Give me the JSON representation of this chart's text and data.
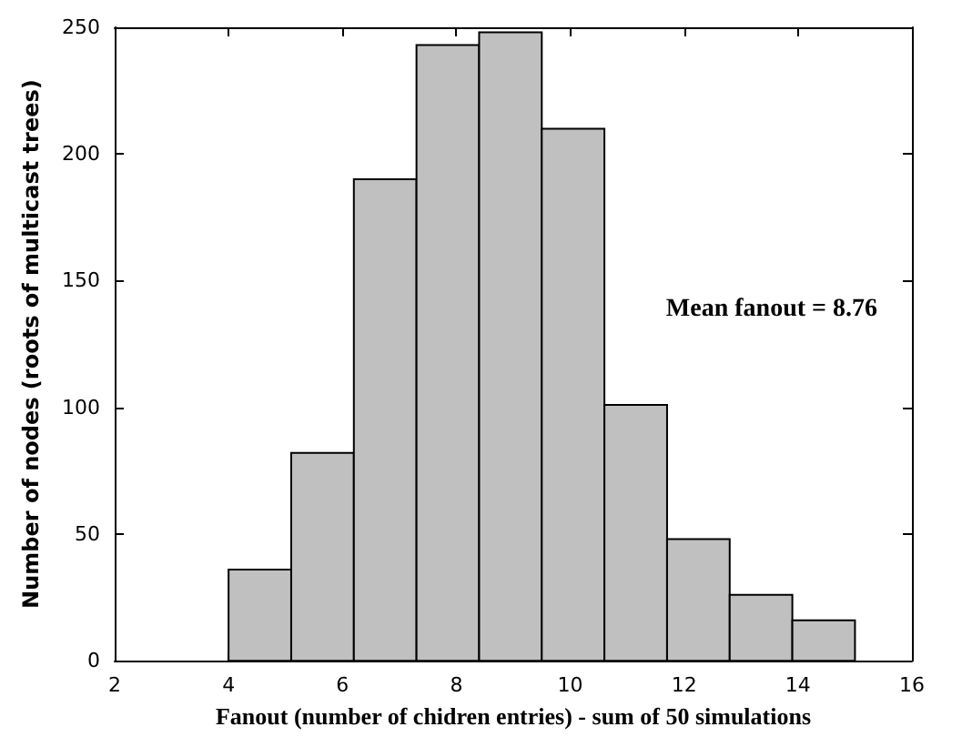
{
  "chart_data": {
    "type": "histogram",
    "bins": [
      4,
      5.1,
      6.2,
      7.3,
      8.4,
      9.5,
      10.6,
      11.7,
      12.8,
      13.9,
      15
    ],
    "values": [
      36,
      82,
      190,
      243,
      248,
      210,
      101,
      48,
      26,
      16
    ],
    "color": "#c0c0c0",
    "xlabel": "Fanout (number of chidren entries) - sum of 50 simulations",
    "ylabel": "Number of nodes (roots of multicast trees)",
    "annotations": [
      "Mean fanout = 8.76"
    ],
    "xlim": [
      2,
      16
    ],
    "xticks": [
      2,
      4,
      6,
      8,
      10,
      12,
      14,
      16
    ],
    "ylim": [
      0,
      250
    ],
    "yticks": [
      0,
      50,
      100,
      150,
      200,
      250
    ],
    "grid": false
  }
}
